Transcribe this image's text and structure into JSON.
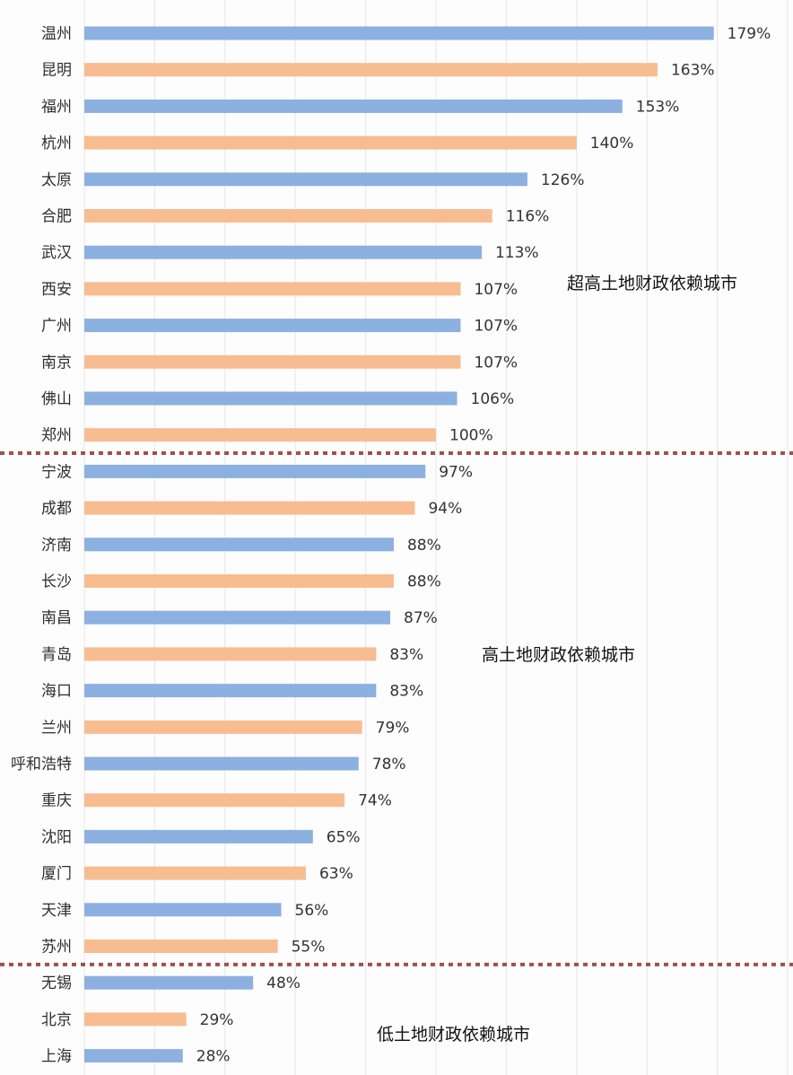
{
  "chart_data": {
    "type": "bar",
    "orientation": "horizontal",
    "categories": [
      "温州",
      "昆明",
      "福州",
      "杭州",
      "太原",
      "合肥",
      "武汉",
      "西安",
      "广州",
      "南京",
      "佛山",
      "郑州",
      "宁波",
      "成都",
      "济南",
      "长沙",
      "南昌",
      "青岛",
      "海口",
      "兰州",
      "呼和浩特",
      "重庆",
      "沈阳",
      "厦门",
      "天津",
      "苏州",
      "无锡",
      "北京",
      "上海"
    ],
    "values": [
      179,
      163,
      153,
      140,
      126,
      116,
      113,
      107,
      107,
      107,
      106,
      100,
      97,
      94,
      88,
      88,
      87,
      83,
      83,
      79,
      78,
      74,
      65,
      63,
      56,
      55,
      48,
      29,
      28
    ],
    "value_labels": [
      "179%",
      "163%",
      "153%",
      "140%",
      "126%",
      "116%",
      "113%",
      "107%",
      "107%",
      "107%",
      "106%",
      "100%",
      "97%",
      "94%",
      "88%",
      "88%",
      "87%",
      "83%",
      "83%",
      "79%",
      "78%",
      "74%",
      "65%",
      "63%",
      "56%",
      "55%",
      "48%",
      "29%",
      "28%"
    ],
    "unit": "%",
    "xlim": [
      0,
      200
    ],
    "grid": "vertical",
    "bar_colors": [
      "#8cb0df",
      "#f8bc91"
    ],
    "groups": [
      {
        "label": "超高土地财政依赖城市",
        "first_index": 0,
        "last_index": 11
      },
      {
        "label": "高土地财政依赖城市",
        "first_index": 12,
        "last_index": 25
      },
      {
        "label": "低土地财政依赖城市",
        "first_index": 26,
        "last_index": 28
      }
    ],
    "divider_color": "#a0504c"
  }
}
